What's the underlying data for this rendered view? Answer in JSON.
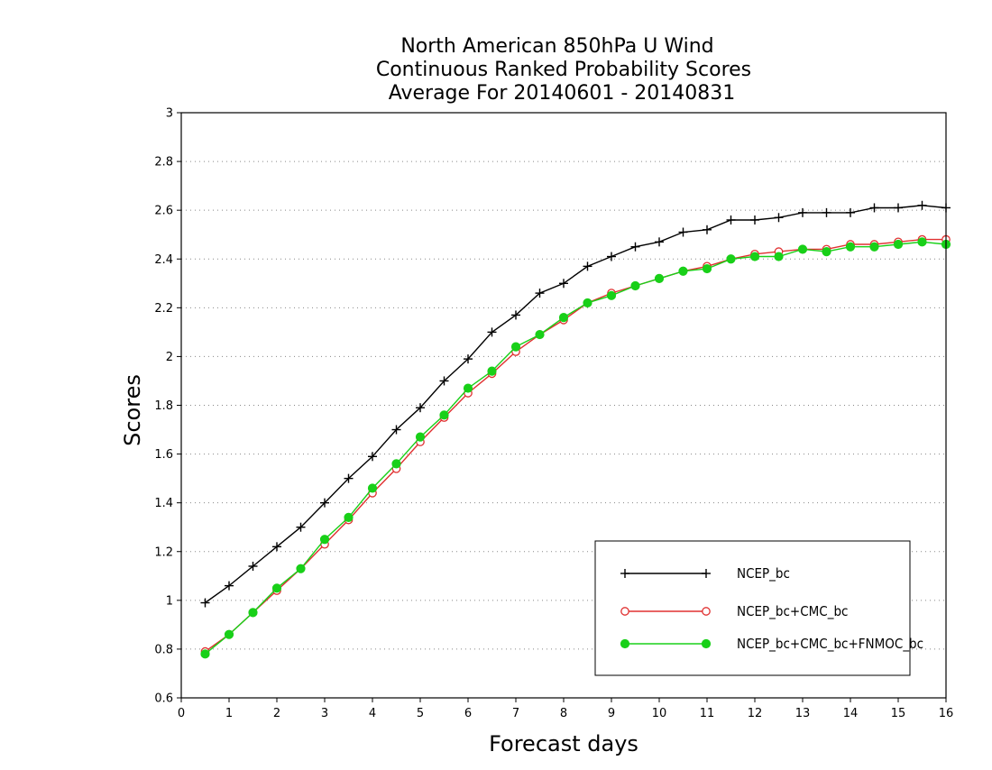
{
  "chart_data": {
    "type": "line",
    "title_lines": [
      "North American 850hPa U Wind",
      "Continuous Ranked Probability Scores",
      "Average For 20140601 - 20140831"
    ],
    "xlabel": "Forecast days",
    "ylabel": "Scores",
    "xlim": [
      0,
      16
    ],
    "ylim": [
      0.6,
      3
    ],
    "x_ticks": [
      0,
      1,
      2,
      3,
      4,
      5,
      6,
      7,
      8,
      9,
      10,
      11,
      12,
      13,
      14,
      15,
      16
    ],
    "y_ticks": [
      0.6,
      0.8,
      1,
      1.2,
      1.4,
      1.6,
      1.8,
      2,
      2.2,
      2.4,
      2.6,
      2.8,
      3
    ],
    "y_tick_labels": [
      "0.6",
      "0.8",
      "1",
      "1.2",
      "1.4",
      "1.6",
      "1.8",
      "2",
      "2.2",
      "2.4",
      "2.6",
      "2.8",
      "3"
    ],
    "grid": "horizontal-dotted",
    "legend_position": "bottom-right",
    "x": [
      0.5,
      1,
      1.5,
      2,
      2.5,
      3,
      3.5,
      4,
      4.5,
      5,
      5.5,
      6,
      6.5,
      7,
      7.5,
      8,
      8.5,
      9,
      9.5,
      10,
      10.5,
      11,
      11.5,
      12,
      12.5,
      13,
      13.5,
      14,
      14.5,
      15,
      15.5,
      16
    ],
    "series": [
      {
        "name": "NCEP_bc",
        "color": "#000000",
        "marker": "plus",
        "values": [
          0.99,
          1.06,
          1.14,
          1.22,
          1.3,
          1.4,
          1.5,
          1.59,
          1.7,
          1.79,
          1.9,
          1.99,
          2.1,
          2.17,
          2.26,
          2.3,
          2.37,
          2.41,
          2.45,
          2.47,
          2.51,
          2.52,
          2.56,
          2.56,
          2.57,
          2.59,
          2.59,
          2.59,
          2.61,
          2.61,
          2.62,
          2.61
        ]
      },
      {
        "name": "NCEP_bc+CMC_bc",
        "color": "#e03030",
        "marker": "open-circle",
        "values": [
          0.79,
          0.86,
          0.95,
          1.04,
          1.13,
          1.23,
          1.33,
          1.44,
          1.54,
          1.65,
          1.75,
          1.85,
          1.93,
          2.02,
          2.09,
          2.15,
          2.22,
          2.26,
          2.29,
          2.32,
          2.35,
          2.37,
          2.4,
          2.42,
          2.43,
          2.44,
          2.44,
          2.46,
          2.46,
          2.47,
          2.48,
          2.48
        ]
      },
      {
        "name": "NCEP_bc+CMC_bc+FNMOC_bc",
        "color": "#18d018",
        "marker": "filled-circle",
        "values": [
          0.78,
          0.86,
          0.95,
          1.05,
          1.13,
          1.25,
          1.34,
          1.46,
          1.56,
          1.67,
          1.76,
          1.87,
          1.94,
          2.04,
          2.09,
          2.16,
          2.22,
          2.25,
          2.29,
          2.32,
          2.35,
          2.36,
          2.4,
          2.41,
          2.41,
          2.44,
          2.43,
          2.45,
          2.45,
          2.46,
          2.47,
          2.46
        ]
      }
    ]
  }
}
